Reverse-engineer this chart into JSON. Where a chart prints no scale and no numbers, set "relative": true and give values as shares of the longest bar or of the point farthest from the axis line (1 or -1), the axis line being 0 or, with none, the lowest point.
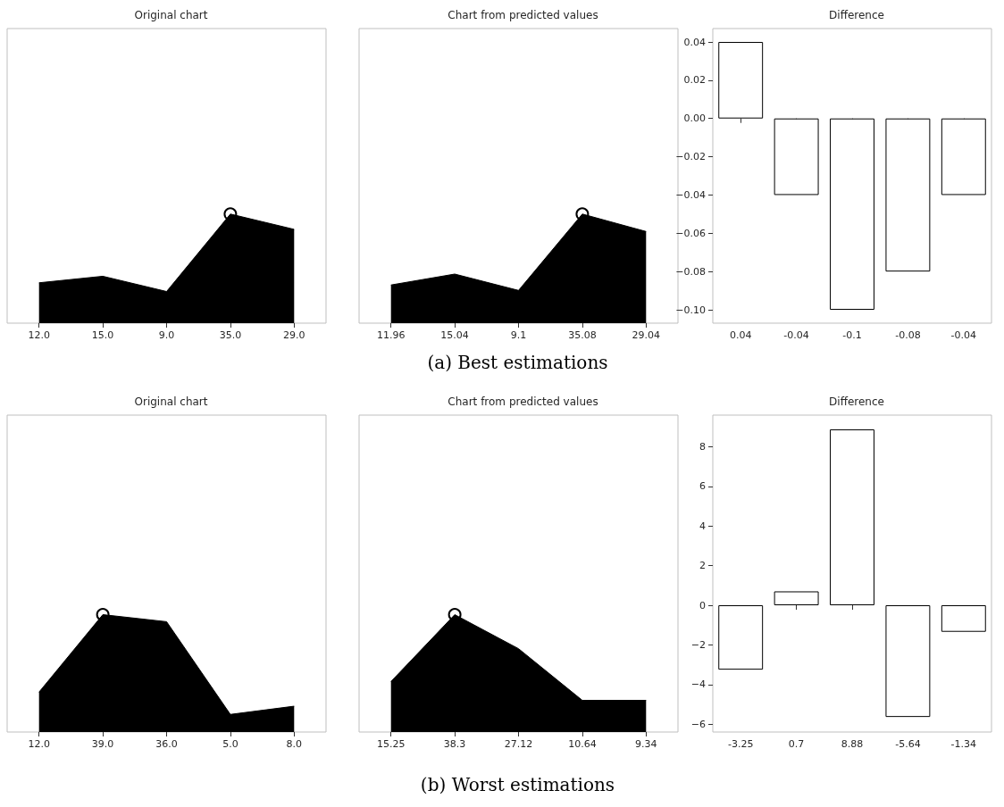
{
  "chart_data": [
    {
      "type": "area",
      "title": "Original chart",
      "categories": [
        "12.0",
        "15.0",
        "9.0",
        "35.0",
        "29.0"
      ],
      "relative": true,
      "tick_labels": "x",
      "grid": false,
      "series": [
        {
          "color": "#000000",
          "values": [
            0.37,
            0.43,
            0.29,
            1,
            0.86
          ]
        },
        {
          "type": "scatter",
          "marker": "circle",
          "color": "#000000",
          "x": [
            "35.0"
          ],
          "values": [
            1
          ]
        }
      ]
    },
    {
      "type": "area",
      "title": "Chart from predicted values",
      "categories": [
        "11.96",
        "15.04",
        "9.1",
        "35.08",
        "29.04"
      ],
      "relative": true,
      "tick_labels": "x",
      "grid": false,
      "annotations": [
        "(a) Best estimations"
      ],
      "series": [
        {
          "color": "#000000",
          "values": [
            0.35,
            0.45,
            0.3,
            1,
            0.84
          ]
        },
        {
          "type": "scatter",
          "marker": "circle",
          "color": "#000000",
          "x": [
            "35.08"
          ],
          "values": [
            1
          ]
        }
      ]
    },
    {
      "type": "bar",
      "title": "Difference",
      "categories": [
        "0.04",
        "-0.04",
        "-0.1",
        "-0.08",
        "-0.04"
      ],
      "grid": false,
      "ylim": [
        -0.107,
        0.047
      ],
      "yticks": [
        {
          "value": -0.1,
          "label": "−0.10"
        },
        {
          "value": -0.08,
          "label": "−0.08"
        },
        {
          "value": -0.06,
          "label": "−0.06"
        },
        {
          "value": -0.04,
          "label": "−0.04"
        },
        {
          "value": -0.02,
          "label": "−0.02"
        },
        {
          "value": 0,
          "label": "0.00"
        },
        {
          "value": 0.02,
          "label": "0.02"
        },
        {
          "value": 0.04,
          "label": "0.04"
        }
      ],
      "series": [
        {
          "color": "#ffffff",
          "values": [
            0.04,
            -0.04,
            -0.1,
            -0.08,
            -0.04
          ]
        }
      ]
    },
    {
      "type": "area",
      "title": "Original chart",
      "categories": [
        "12.0",
        "39.0",
        "36.0",
        "5.0",
        "8.0"
      ],
      "relative": true,
      "tick_labels": "x",
      "grid": false,
      "series": [
        {
          "color": "#000000",
          "values": [
            0.34,
            1,
            0.94,
            0.15,
            0.22
          ]
        },
        {
          "type": "scatter",
          "marker": "circle",
          "color": "#000000",
          "x": [
            "39.0"
          ],
          "values": [
            1
          ]
        }
      ]
    },
    {
      "type": "area",
      "title": "Chart from predicted values",
      "categories": [
        "15.25",
        "38.3",
        "27.12",
        "10.64",
        "9.34"
      ],
      "relative": true,
      "tick_labels": "x",
      "grid": false,
      "annotations": [
        "(b) Worst estimations"
      ],
      "series": [
        {
          "color": "#000000",
          "values": [
            0.43,
            1,
            0.71,
            0.27,
            0.27
          ]
        },
        {
          "type": "scatter",
          "marker": "circle",
          "color": "#000000",
          "x": [
            "38.3"
          ],
          "values": [
            1
          ]
        }
      ]
    },
    {
      "type": "bar",
      "title": "Difference",
      "categories": [
        "-3.25",
        "0.7",
        "8.88",
        "-5.64",
        "-1.34"
      ],
      "grid": false,
      "ylim": [
        -6.4,
        9.6
      ],
      "yticks": [
        {
          "value": -6,
          "label": "−6"
        },
        {
          "value": -4,
          "label": "−4"
        },
        {
          "value": -2,
          "label": "−2"
        },
        0,
        2,
        4,
        6,
        8
      ],
      "series": [
        {
          "color": "#ffffff",
          "values": [
            -3.25,
            0.7,
            8.88,
            -5.64,
            -1.34
          ]
        }
      ]
    }
  ]
}
